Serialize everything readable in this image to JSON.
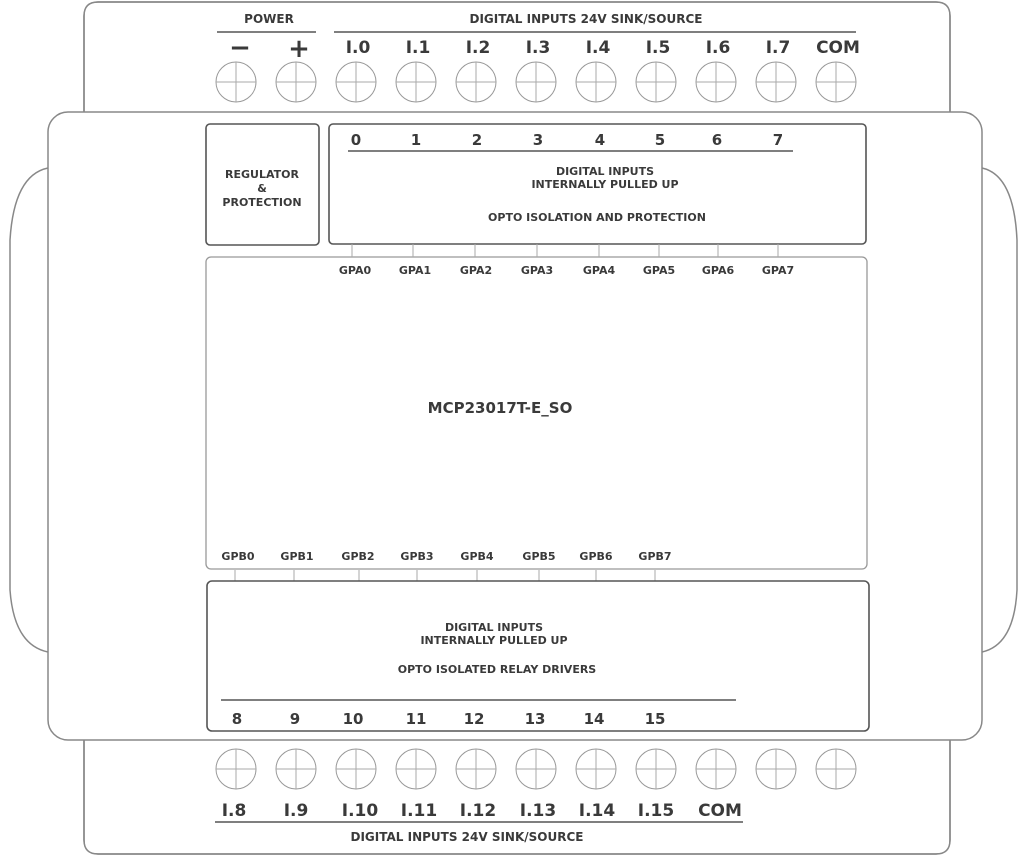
{
  "top_block": {
    "power_label": "POWER",
    "power_terminals": [
      "−",
      "+"
    ],
    "group_label": "DIGITAL INPUTS 24V SINK/SOURCE",
    "terminals": [
      "I.0",
      "I.1",
      "I.2",
      "I.3",
      "I.4",
      "I.5",
      "I.6",
      "I.7",
      "COM"
    ]
  },
  "regulator": {
    "lines": [
      "REGULATOR",
      "&",
      "PROTECTION"
    ]
  },
  "input_block_a": {
    "numbers": [
      "0",
      "1",
      "2",
      "3",
      "4",
      "5",
      "6",
      "7"
    ],
    "line1": "DIGITAL INPUTS",
    "line2": "INTERNALLY PULLED UP",
    "line3": "OPTO ISOLATION AND PROTECTION"
  },
  "chip": {
    "name": "MCP23017T-E_SO",
    "port_a": [
      "GPA0",
      "GPA1",
      "GPA2",
      "GPA3",
      "GPA4",
      "GPA5",
      "GPA6",
      "GPA7"
    ],
    "port_b": [
      "GPB0",
      "GPB1",
      "GPB2",
      "GPB3",
      "GPB4",
      "GPB5",
      "GPB6",
      "GPB7"
    ]
  },
  "input_block_b": {
    "line1": "DIGITAL INPUTS",
    "line2": "INTERNALLY PULLED UP",
    "line3": "OPTO ISOLATED RELAY DRIVERS",
    "numbers": [
      "8",
      "9",
      "10",
      "11",
      "12",
      "13",
      "14",
      "15"
    ]
  },
  "bottom_block": {
    "terminals": [
      "I.8",
      "I.9",
      "I.10",
      "I.11",
      "I.12",
      "I.13",
      "I.14",
      "I.15",
      "COM"
    ],
    "group_label": "DIGITAL INPUTS 24V SINK/SOURCE",
    "terminal_count": 11
  }
}
